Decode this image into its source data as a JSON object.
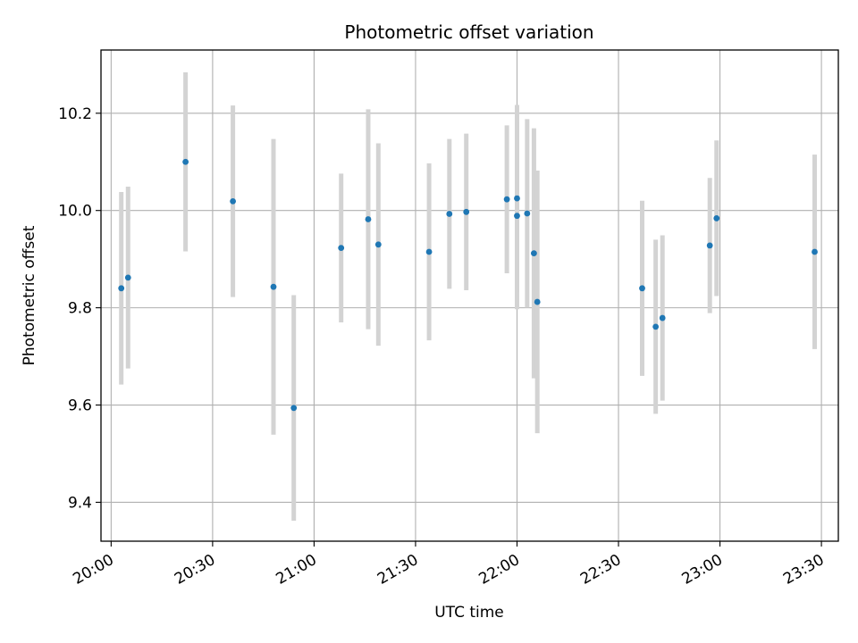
{
  "chart_data": {
    "type": "scatter",
    "title": "Photometric offset variation",
    "xlabel": "UTC time",
    "ylabel": "Photometric offset",
    "xlim": [
      "19:57",
      "23:35"
    ],
    "ylim": [
      9.32,
      10.33
    ],
    "x_ticks": [
      "20:00",
      "20:30",
      "21:00",
      "21:30",
      "22:00",
      "22:30",
      "23:00",
      "23:30"
    ],
    "y_ticks": [
      "9.4",
      "9.6",
      "9.8",
      "10.0",
      "10.2"
    ],
    "grid": true,
    "marker_color": "#1f77b4",
    "errorbar_color": "#d3d3d3",
    "points": [
      {
        "t": "20:03",
        "y": 9.84,
        "err": 0.198
      },
      {
        "t": "20:05",
        "y": 9.862,
        "err": 0.187
      },
      {
        "t": "20:22",
        "y": 10.1,
        "err": 0.184
      },
      {
        "t": "20:36",
        "y": 10.019,
        "err": 0.197
      },
      {
        "t": "20:48",
        "y": 9.843,
        "err": 0.304
      },
      {
        "t": "20:54",
        "y": 9.594,
        "err": 0.232
      },
      {
        "t": "21:08",
        "y": 9.923,
        "err": 0.153
      },
      {
        "t": "21:16",
        "y": 9.982,
        "err": 0.226
      },
      {
        "t": "21:19",
        "y": 9.93,
        "err": 0.208
      },
      {
        "t": "21:34",
        "y": 9.915,
        "err": 0.182
      },
      {
        "t": "21:40",
        "y": 9.993,
        "err": 0.154
      },
      {
        "t": "21:45",
        "y": 9.997,
        "err": 0.161
      },
      {
        "t": "21:57",
        "y": 10.023,
        "err": 0.152
      },
      {
        "t": "22:00",
        "y": 10.025,
        "err": 0.192
      },
      {
        "t": "22:00",
        "y": 9.989,
        "err": 0.192
      },
      {
        "t": "22:03",
        "y": 9.994,
        "err": 0.194
      },
      {
        "t": "22:05",
        "y": 9.912,
        "err": 0.257
      },
      {
        "t": "22:06",
        "y": 9.812,
        "err": 0.27
      },
      {
        "t": "22:37",
        "y": 9.84,
        "err": 0.18
      },
      {
        "t": "22:41",
        "y": 9.761,
        "err": 0.179
      },
      {
        "t": "22:43",
        "y": 9.779,
        "err": 0.17
      },
      {
        "t": "22:57",
        "y": 9.928,
        "err": 0.139
      },
      {
        "t": "22:59",
        "y": 9.984,
        "err": 0.16
      },
      {
        "t": "23:28",
        "y": 9.915,
        "err": 0.2
      }
    ]
  }
}
